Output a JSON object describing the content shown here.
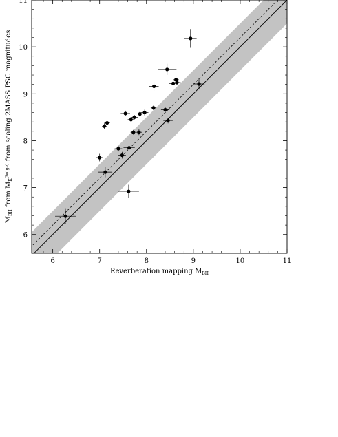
{
  "chart_data": {
    "type": "scatter",
    "xlabel": {
      "main": "Reverberation mapping M",
      "sub": "BH"
    },
    "ylabel": {
      "m": "M",
      "m_sub": "BH",
      "from": " from M",
      "k_sub": "K",
      "k_sup": "(bulge)",
      "rest": " from scaling 2MASS PSC magnitudes"
    },
    "xlim": [
      5.55,
      11.0
    ],
    "ylim": [
      5.6,
      11.0
    ],
    "xticks": [
      6,
      7,
      8,
      9,
      10,
      11
    ],
    "yticks": [
      6,
      7,
      8,
      9,
      10,
      11
    ],
    "grid": false,
    "one_to_one_line": true,
    "dashed_offset": 0.2,
    "band_halfwidth": 0.5,
    "band_color": "#c3c3c3",
    "points": [
      {
        "x": 6.27,
        "y": 6.39,
        "xerr": 0.22,
        "yerr": 0.17
      },
      {
        "x": 7.0,
        "y": 7.64,
        "xerr": 0.07,
        "yerr": 0.08
      },
      {
        "x": 7.12,
        "y": 7.33,
        "xerr": 0.15,
        "yerr": 0.11
      },
      {
        "x": 7.1,
        "y": 8.31,
        "xerr": 0.05,
        "yerr": 0.06
      },
      {
        "x": 7.16,
        "y": 8.38,
        "xerr": 0.06,
        "yerr": 0.05
      },
      {
        "x": 7.4,
        "y": 7.83,
        "xerr": 0.08,
        "yerr": 0.06
      },
      {
        "x": 7.48,
        "y": 7.69,
        "xerr": 0.08,
        "yerr": 0.07
      },
      {
        "x": 7.55,
        "y": 8.58,
        "xerr": 0.1,
        "yerr": 0.06
      },
      {
        "x": 7.63,
        "y": 7.85,
        "xerr": 0.12,
        "yerr": 0.08
      },
      {
        "x": 7.62,
        "y": 6.92,
        "xerr": 0.22,
        "yerr": 0.14
      },
      {
        "x": 7.67,
        "y": 8.45,
        "xerr": 0.07,
        "yerr": 0.05
      },
      {
        "x": 7.72,
        "y": 8.18,
        "xerr": 0.06,
        "yerr": 0.05
      },
      {
        "x": 7.74,
        "y": 8.5,
        "xerr": 0.08,
        "yerr": 0.05
      },
      {
        "x": 7.84,
        "y": 8.18,
        "xerr": 0.07,
        "yerr": 0.06
      },
      {
        "x": 7.86,
        "y": 8.57,
        "xerr": 0.1,
        "yerr": 0.06
      },
      {
        "x": 7.96,
        "y": 8.6,
        "xerr": 0.08,
        "yerr": 0.06
      },
      {
        "x": 8.15,
        "y": 8.7,
        "xerr": 0.06,
        "yerr": 0.05
      },
      {
        "x": 8.16,
        "y": 9.16,
        "xerr": 0.1,
        "yerr": 0.09
      },
      {
        "x": 8.4,
        "y": 8.66,
        "xerr": 0.09,
        "yerr": 0.05
      },
      {
        "x": 8.44,
        "y": 9.52,
        "xerr": 0.2,
        "yerr": 0.12
      },
      {
        "x": 8.46,
        "y": 8.43,
        "xerr": 0.1,
        "yerr": 0.06
      },
      {
        "x": 8.57,
        "y": 9.22,
        "xerr": 0.09,
        "yerr": 0.07
      },
      {
        "x": 8.63,
        "y": 9.3,
        "xerr": 0.06,
        "yerr": 0.08
      },
      {
        "x": 8.65,
        "y": 9.24,
        "xerr": 0.08,
        "yerr": 0.06
      },
      {
        "x": 8.94,
        "y": 10.18,
        "xerr": 0.13,
        "yerr": 0.2
      },
      {
        "x": 9.12,
        "y": 9.21,
        "xerr": 0.12,
        "yerr": 0.12
      }
    ]
  }
}
